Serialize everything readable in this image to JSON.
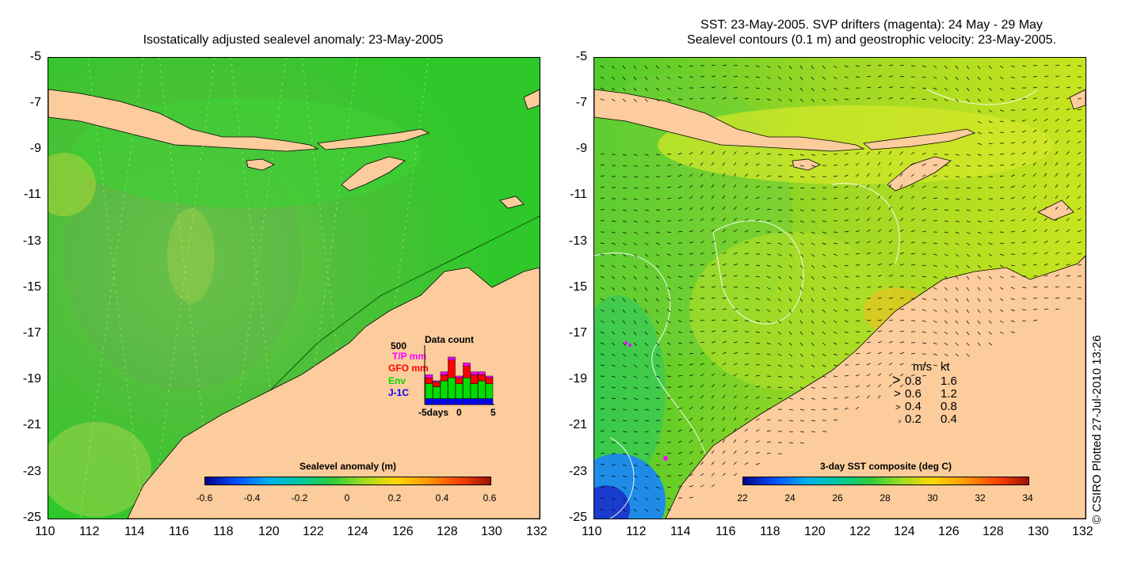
{
  "left_panel": {
    "title": "Isostatically adjusted sealevel anomaly: 23-May-2005",
    "colorbar": {
      "title": "Sealevel anomaly (m)",
      "ticks": [
        "-0.6",
        "-0.4",
        "-0.2",
        "0",
        "0.2",
        "0.4",
        "0.6"
      ]
    },
    "data_count": {
      "title": "Data count",
      "max_label": "500",
      "legend": [
        "T/P mm",
        "GFO mm",
        "Env",
        "J-1C"
      ],
      "legend_colors": [
        "#ff00ff",
        "#ff0000",
        "#00dd00",
        "#0000ff"
      ],
      "x_labels": [
        "-5days",
        "0",
        "5"
      ],
      "bars": [
        {
          "jc": 0.1,
          "env": 0.25,
          "gfo": 0.1,
          "tp": 0.05
        },
        {
          "jc": 0.1,
          "env": 0.2,
          "gfo": 0.08,
          "tp": 0.02
        },
        {
          "jc": 0.1,
          "env": 0.3,
          "gfo": 0.1,
          "tp": 0.05
        },
        {
          "jc": 0.1,
          "env": 0.35,
          "gfo": 0.3,
          "tp": 0.05
        },
        {
          "jc": 0.1,
          "env": 0.25,
          "gfo": 0.1,
          "tp": 0.03
        },
        {
          "jc": 0.1,
          "env": 0.35,
          "gfo": 0.2,
          "tp": 0.05
        },
        {
          "jc": 0.1,
          "env": 0.25,
          "gfo": 0.15,
          "tp": 0.05
        },
        {
          "jc": 0.1,
          "env": 0.3,
          "gfo": 0.1,
          "tp": 0.05
        },
        {
          "jc": 0.1,
          "env": 0.25,
          "gfo": 0.1,
          "tp": 0.03
        }
      ]
    }
  },
  "right_panel": {
    "title_line1": "SST: 23-May-2005. SVP drifters (magenta): 24 May - 29 May",
    "title_line2": "Sealevel contours (0.1 m) and geostrophic velocity: 23-May-2005.",
    "colorbar": {
      "title": "3-day SST composite (deg C)",
      "ticks": [
        "22",
        "24",
        "26",
        "28",
        "30",
        "32",
        "34"
      ]
    },
    "velocity_key": {
      "header_ms": "m/s",
      "header_kt": "kt",
      "rows": [
        {
          "ms": "0.8",
          "kt": "1.6"
        },
        {
          "ms": "0.6",
          "kt": "1.2"
        },
        {
          "ms": "0.4",
          "kt": "0.8"
        },
        {
          "ms": "0.2",
          "kt": "0.4"
        }
      ]
    }
  },
  "axes": {
    "lat_ticks": [
      "-5",
      "-7",
      "-9",
      "-11",
      "-13",
      "-15",
      "-17",
      "-19",
      "-21",
      "-23",
      "-25"
    ],
    "lon_ticks": [
      "110",
      "112",
      "114",
      "116",
      "118",
      "120",
      "122",
      "124",
      "126",
      "128",
      "130",
      "132"
    ]
  },
  "credit": "© CSIRO Plotted 27-Jul-2010 13:26",
  "colors": {
    "land": "#fccc9c",
    "ocean_green": "#22cc22",
    "sst_yellow": "#c8e81e",
    "sst_blue": "#1e8ce6"
  }
}
